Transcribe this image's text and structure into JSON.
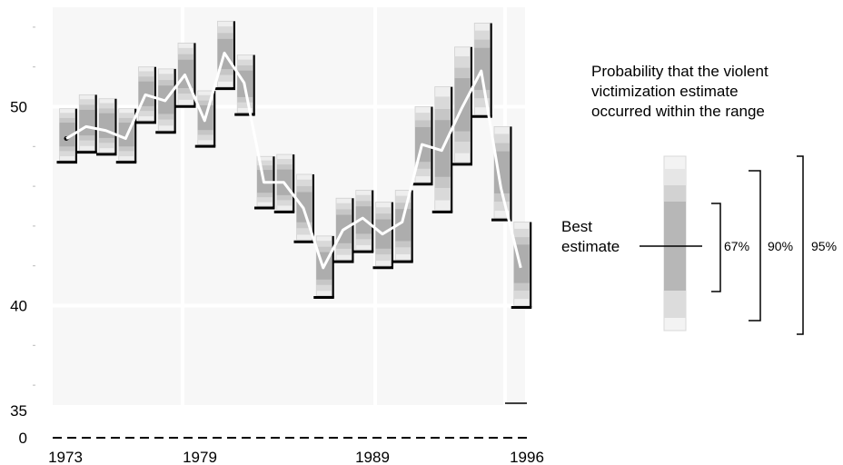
{
  "chart_data": {
    "type": "line",
    "title": "",
    "xlabel": "",
    "ylabel": "",
    "x": [
      1973,
      1974,
      1975,
      1976,
      1977,
      1978,
      1979,
      1980,
      1981,
      1982,
      1983,
      1984,
      1985,
      1986,
      1987,
      1988,
      1989,
      1990,
      1991,
      1992,
      1993,
      1994,
      1995,
      1996
    ],
    "series": [
      {
        "values": [
          48.4,
          49.0,
          48.8,
          48.4,
          50.6,
          50.3,
          51.6,
          49.3,
          52.7,
          51.2,
          46.2,
          46.2,
          44.9,
          41.9,
          43.8,
          44.4,
          43.6,
          44.2,
          48.1,
          47.8,
          49.9,
          51.8,
          45.9,
          41.9
        ]
      }
    ],
    "intervals": {
      "probability_bands": [
        "67%",
        "90%",
        "95%"
      ],
      "lower_95": [
        47.3,
        47.8,
        47.7,
        47.3,
        49.3,
        48.8,
        50.1,
        48.1,
        51.0,
        49.7,
        45.0,
        44.8,
        43.3,
        40.5,
        42.3,
        42.8,
        42.0,
        42.3,
        46.2,
        44.8,
        47.2,
        49.6,
        44.4,
        40.0
      ],
      "upper_95": [
        49.9,
        50.6,
        50.4,
        49.9,
        52.0,
        51.9,
        53.2,
        50.8,
        54.3,
        52.6,
        47.5,
        47.6,
        46.6,
        43.5,
        45.4,
        45.8,
        45.2,
        45.8,
        50.0,
        51.0,
        53.0,
        54.2,
        49.0,
        44.2
      ]
    },
    "xlim": [
      1973,
      1996
    ],
    "ylim": [
      35,
      55
    ],
    "y_axis_break": true,
    "y_tick_labels": [
      "50",
      "40",
      "35",
      "0"
    ],
    "x_tick_labels": [
      "1973",
      "1979",
      "1989",
      "1996"
    ],
    "vertical_gridlines_at": [
      1979,
      1989,
      1995
    ],
    "grid": true,
    "background_color": "#f7f7f7",
    "line_color": "#ffffff",
    "band_colors": {
      "outer": "#eeeeee",
      "band95": "#d9d9d9",
      "band90": "#c6c6c6",
      "band67": "#adadad"
    }
  },
  "legend": {
    "title_lines": [
      "Probability that the violent",
      "victimization estimate",
      "occurred within the range"
    ],
    "best_estimate_lines": [
      "Best",
      "estimate"
    ],
    "band_labels": [
      "67%",
      "90%",
      "95%"
    ]
  }
}
